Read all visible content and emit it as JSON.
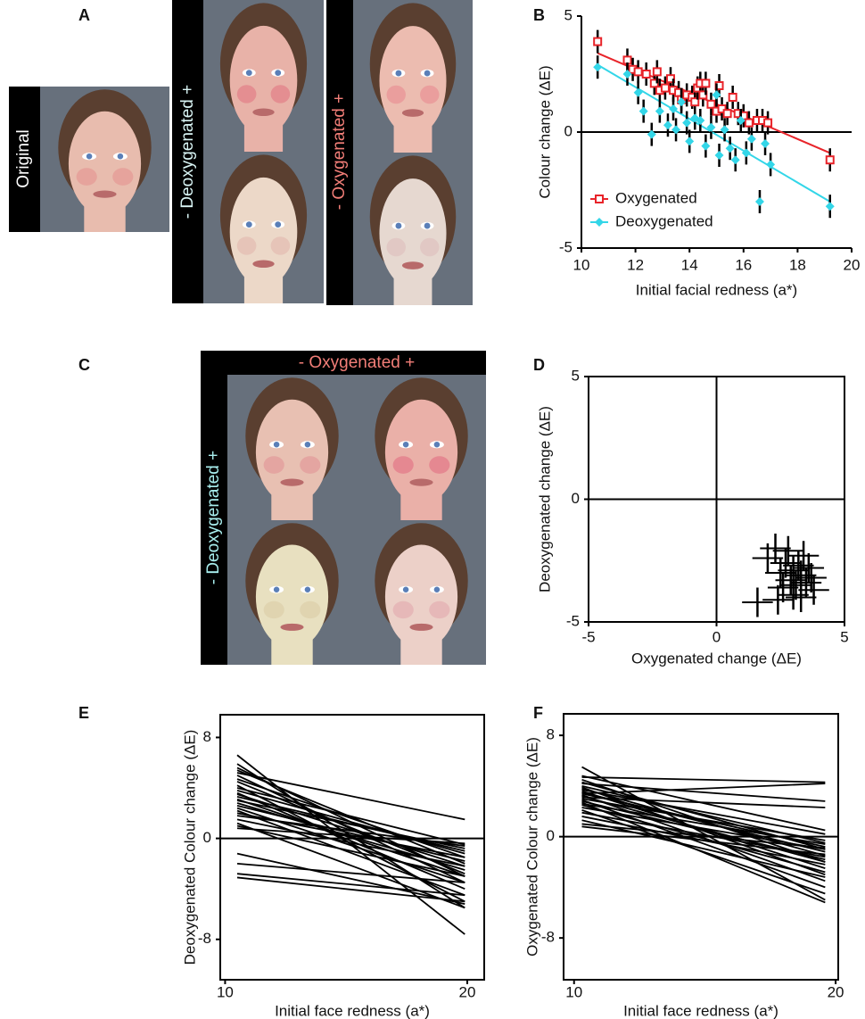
{
  "panels": {
    "A": {
      "letter": "A",
      "original": "Original",
      "deoxygenated": "- Deoxygenated +",
      "oxygenated": "- Oxygenated +"
    },
    "C": {
      "letter": "C",
      "oxygenated": "- Oxygenated +",
      "deoxygenated": "- Deoxygenated +"
    }
  },
  "chart_data": [
    {
      "panel": "B",
      "type": "scatter",
      "xlabel": "Initial facial redness (a*)",
      "ylabel": "Colour change (ΔE)",
      "xlim": [
        10,
        20
      ],
      "ylim": [
        -5,
        5
      ],
      "xticks": [
        10,
        12,
        14,
        16,
        18,
        20
      ],
      "yticks": [
        -5,
        0,
        5
      ],
      "zero_lines": true,
      "box": false,
      "legend": "lower left",
      "series": [
        {
          "name": "Oxygenated",
          "color": "#e8242a",
          "marker": "square",
          "error": 0.5,
          "fit_x": [
            10.6,
            19.2
          ],
          "fit": [
            3.4,
            -0.9
          ],
          "x": [
            10.6,
            11.7,
            11.9,
            12.1,
            12.4,
            12.7,
            12.8,
            12.9,
            13.1,
            13.3,
            13.4,
            13.6,
            13.7,
            13.9,
            14.1,
            14.2,
            14.3,
            14.4,
            14.5,
            14.6,
            14.8,
            15.0,
            15.1,
            15.2,
            15.4,
            15.6,
            15.8,
            16.0,
            16.2,
            16.5,
            16.7,
            16.9,
            19.2
          ],
          "values": [
            3.9,
            3.1,
            2.7,
            2.6,
            2.5,
            2.1,
            2.6,
            1.8,
            1.9,
            2.3,
            1.8,
            1.7,
            1.4,
            1.6,
            1.5,
            1.3,
            1.9,
            2.1,
            1.6,
            2.1,
            1.2,
            0.9,
            2.0,
            1.0,
            0.8,
            1.5,
            0.8,
            0.7,
            0.4,
            0.5,
            0.5,
            0.4,
            -1.2
          ]
        },
        {
          "name": "Deoxygenated",
          "color": "#33d6e8",
          "marker": "diamond",
          "error": 0.5,
          "fit_x": [
            10.6,
            19.2
          ],
          "fit": [
            2.9,
            -3.0
          ],
          "x": [
            10.6,
            11.7,
            12.1,
            12.3,
            12.6,
            12.9,
            13.2,
            13.4,
            13.5,
            13.7,
            13.9,
            14.0,
            14.2,
            14.4,
            14.6,
            14.8,
            15.0,
            15.1,
            15.3,
            15.5,
            15.7,
            15.9,
            16.1,
            16.3,
            16.6,
            16.8,
            17.0,
            19.2
          ],
          "values": [
            2.8,
            2.5,
            1.7,
            0.9,
            -0.1,
            0.9,
            0.3,
            1.0,
            0.1,
            1.3,
            0.4,
            -0.4,
            0.6,
            0.5,
            -0.6,
            0.2,
            1.6,
            -1.0,
            0.1,
            -0.7,
            -1.2,
            0.5,
            -0.9,
            -0.3,
            -3.0,
            -0.5,
            -1.4,
            -3.2
          ]
        }
      ]
    },
    {
      "panel": "D",
      "type": "scatter",
      "xlabel": "Oxygenated change (ΔE)",
      "ylabel": "Deoxygenated change (ΔE)",
      "xlim": [
        -5,
        5
      ],
      "ylim": [
        -5,
        5
      ],
      "xticks": [
        -5,
        0,
        5
      ],
      "yticks": [
        -5,
        0,
        5
      ],
      "zero_lines": true,
      "box": true,
      "series": [
        {
          "color": "#000000",
          "marker": "none",
          "error": 0.6,
          "xerr": 0.6,
          "x": [
            1.6,
            2.0,
            2.3,
            2.5,
            2.6,
            2.7,
            2.8,
            2.9,
            3.0,
            3.0,
            3.1,
            3.2,
            3.3,
            3.3,
            3.4,
            3.5,
            3.6,
            3.7,
            3.8,
            2.4
          ],
          "values": [
            -4.2,
            -2.4,
            -2.0,
            -3.0,
            -3.6,
            -2.6,
            -2.1,
            -3.3,
            -3.9,
            -2.9,
            -3.5,
            -2.7,
            -4.0,
            -3.1,
            -2.3,
            -3.4,
            -2.8,
            -3.2,
            -3.7,
            -4.1
          ]
        }
      ]
    },
    {
      "panel": "E",
      "type": "line",
      "xlabel": "Initial face redness (a*)",
      "ylabel": "Deoxygenated Colour change (ΔE)",
      "xlim": [
        9.8,
        20.7
      ],
      "ylim": [
        -11.2,
        9.8
      ],
      "xticks": [
        10,
        20
      ],
      "yticks": [
        -8,
        0,
        8
      ],
      "zero_lines": true,
      "box": true,
      "color": "#000000",
      "x": [
        10.5,
        19.9
      ],
      "series": [
        {
          "values": [
            6.6,
            -7.6
          ]
        },
        {
          "values": [
            5.9,
            -5.5
          ]
        },
        {
          "values": [
            5.6,
            -3
          ]
        },
        {
          "values": [
            5.4,
            -2
          ]
        },
        {
          "values": [
            5.2,
            1.5
          ]
        },
        {
          "values": [
            5.0,
            -3.5
          ]
        },
        {
          "values": [
            4.7,
            -1.5
          ]
        },
        {
          "values": [
            4.5,
            -2.8
          ]
        },
        {
          "values": [
            4.2,
            -5.0
          ]
        },
        {
          "values": [
            4.0,
            -0.5
          ]
        },
        {
          "values": [
            3.8,
            -1.2
          ]
        },
        {
          "values": [
            3.6,
            -4.0
          ]
        },
        {
          "values": [
            3.5,
            -2.2
          ]
        },
        {
          "values": [
            3.3,
            -1.0
          ]
        },
        {
          "values": [
            3.1,
            -3.0
          ]
        },
        {
          "values": [
            3.0,
            -0.8
          ]
        },
        {
          "values": [
            2.8,
            -2.5
          ]
        },
        {
          "values": [
            2.6,
            -1.8
          ]
        },
        {
          "values": [
            2.4,
            -3.5
          ]
        },
        {
          "values": [
            2.2,
            -4.5
          ]
        },
        {
          "values": [
            2.0,
            -1.5
          ]
        },
        {
          "values": [
            1.8,
            -0.6
          ]
        },
        {
          "values": [
            1.5,
            -2.2
          ]
        },
        {
          "values": [
            1.2,
            -5.5
          ]
        },
        {
          "values": [
            1.0,
            -3.0
          ]
        },
        {
          "values": [
            -1.2,
            -5.2
          ]
        },
        {
          "values": [
            -2.0,
            -3.5
          ]
        },
        {
          "values": [
            -2.8,
            -4.5
          ]
        },
        {
          "values": [
            -3.1,
            -5.0
          ]
        },
        {
          "values": [
            0.8,
            -0.4
          ]
        }
      ]
    },
    {
      "panel": "F",
      "type": "line",
      "xlabel": "Initial face redness (a*)",
      "ylabel": "Oxygenated Colour change (ΔE)",
      "xlim": [
        9.6,
        20.1
      ],
      "ylim": [
        -11.3,
        9.7
      ],
      "xticks": [
        10,
        20
      ],
      "yticks": [
        -8,
        0,
        8
      ],
      "zero_lines": true,
      "box": true,
      "color": "#000000",
      "x": [
        10.3,
        19.6
      ],
      "series": [
        {
          "values": [
            5.5,
            -5.0
          ]
        },
        {
          "values": [
            4.8,
            0.5
          ]
        },
        {
          "values": [
            4.7,
            4.3
          ]
        },
        {
          "values": [
            4.5,
            -2
          ]
        },
        {
          "values": [
            4.3,
            -1
          ]
        },
        {
          "values": [
            4.2,
            2.8
          ]
        },
        {
          "values": [
            4.0,
            -0.5
          ]
        },
        {
          "values": [
            3.9,
            -3.0
          ]
        },
        {
          "values": [
            3.8,
            -1.5
          ]
        },
        {
          "values": [
            3.7,
            0.2
          ]
        },
        {
          "values": [
            3.6,
            -2.5
          ]
        },
        {
          "values": [
            3.5,
            -1.2
          ]
        },
        {
          "values": [
            3.4,
            -0.8
          ]
        },
        {
          "values": [
            3.3,
            -3.5
          ]
        },
        {
          "values": [
            3.2,
            -2.0
          ]
        },
        {
          "values": [
            3.1,
            2.3
          ]
        },
        {
          "values": [
            3.0,
            -0.3
          ]
        },
        {
          "values": [
            2.9,
            -4.0
          ]
        },
        {
          "values": [
            2.8,
            -1.8
          ]
        },
        {
          "values": [
            2.6,
            -0.6
          ]
        },
        {
          "values": [
            2.5,
            -2.8
          ]
        },
        {
          "values": [
            2.3,
            -1.0
          ]
        },
        {
          "values": [
            2.1,
            -4.5
          ]
        },
        {
          "values": [
            1.9,
            -1.6
          ]
        },
        {
          "values": [
            1.6,
            -2.2
          ]
        },
        {
          "values": [
            1.3,
            -3.2
          ]
        },
        {
          "values": [
            1.0,
            -0.9
          ]
        },
        {
          "values": [
            0.8,
            -1.4
          ]
        },
        {
          "values": [
            3.4,
            4.2
          ]
        },
        {
          "values": [
            2.7,
            -5.2
          ]
        }
      ]
    }
  ]
}
